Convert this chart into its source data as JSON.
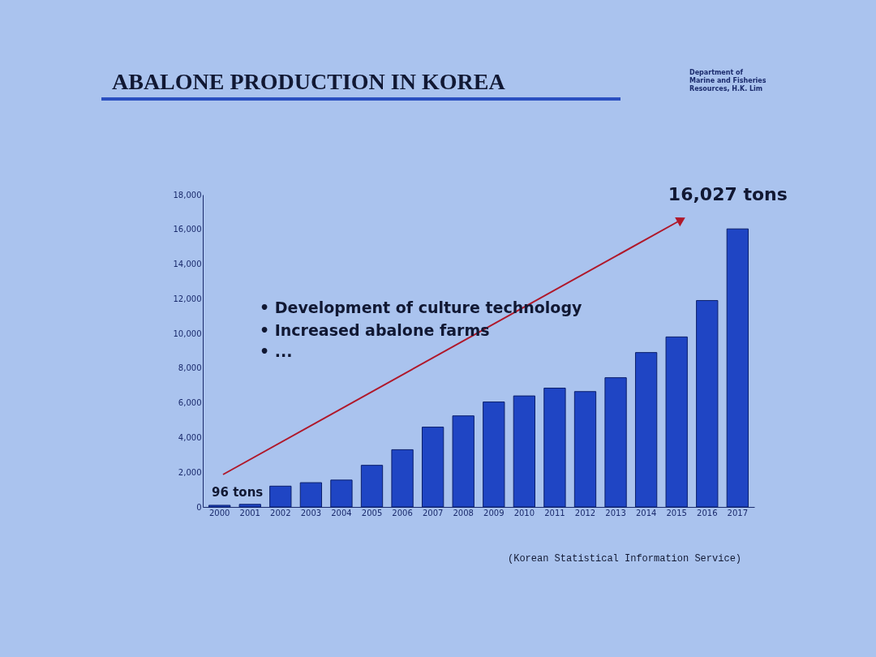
{
  "chart_data": {
    "type": "bar",
    "title": "ABALONE PRODUCTION IN KOREA",
    "categories": [
      "2000",
      "2001",
      "2002",
      "2003",
      "2004",
      "2005",
      "2006",
      "2007",
      "2008",
      "2009",
      "2010",
      "2011",
      "2012",
      "2013",
      "2014",
      "2015",
      "2016",
      "2017"
    ],
    "values": [
      96,
      150,
      1200,
      1400,
      1550,
      2400,
      3300,
      4600,
      5250,
      6050,
      6400,
      6850,
      6650,
      7450,
      8900,
      9800,
      11900,
      16027
    ],
    "value_labels": [
      "96 tons",
      null,
      null,
      null,
      null,
      null,
      null,
      null,
      null,
      null,
      null,
      null,
      null,
      null,
      null,
      null,
      null,
      "16,027 tons"
    ],
    "color": "#1f45c4",
    "ylim": [
      0,
      18000
    ],
    "yticks": [
      {
        "value": 0,
        "label": "0"
      },
      {
        "value": 2000,
        "label": "2,000"
      },
      {
        "value": 4000,
        "label": "4,000"
      },
      {
        "value": 6000,
        "label": "6,000"
      },
      {
        "value": 8000,
        "label": "8,000"
      },
      {
        "value": 10000,
        "label": "10,000"
      },
      {
        "value": 12000,
        "label": "12,000"
      },
      {
        "value": 14000,
        "label": "14,000"
      },
      {
        "value": 16000,
        "label": "16,000"
      },
      {
        "value": 18000,
        "label": "18,000"
      }
    ],
    "grid": false,
    "annotations": [
      "• Development of culture technology",
      "• Increased abalone farms",
      "• ...",
      "(Korean Statistical Information Service)",
      "Department of Marine and Fisheries Resources, H.K. Lim"
    ]
  }
}
